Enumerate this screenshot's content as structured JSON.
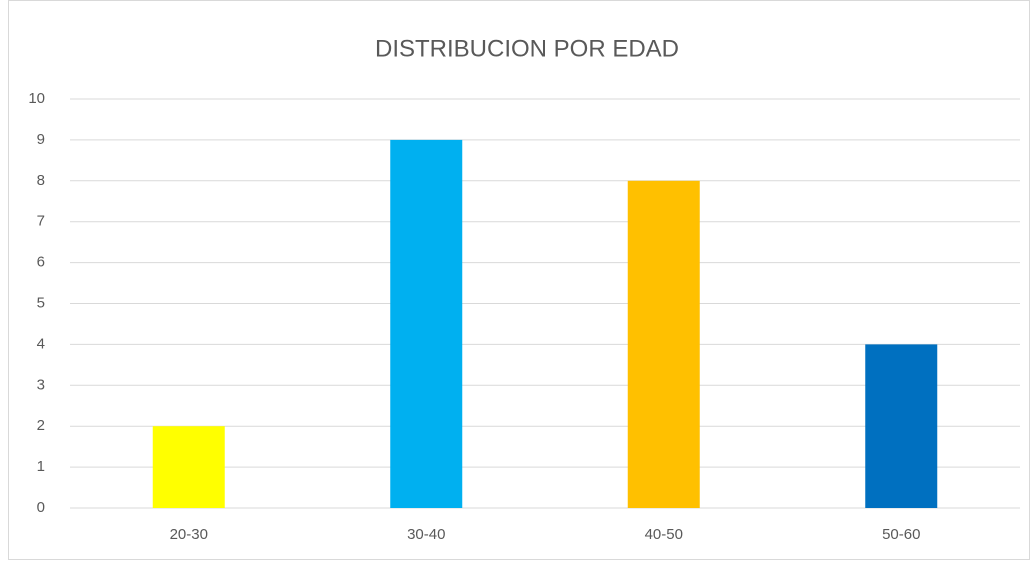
{
  "chart_data": {
    "type": "bar",
    "title": "DISTRIBUCION POR EDAD",
    "categories": [
      "20-30",
      "30-40",
      "40-50",
      "50-60"
    ],
    "values": [
      2,
      9,
      8,
      4
    ],
    "colors": [
      "#ffff00",
      "#00b0f0",
      "#ffc000",
      "#0070c0"
    ],
    "ylim": [
      0,
      10
    ],
    "yticks": [
      0,
      1,
      2,
      3,
      4,
      5,
      6,
      7,
      8,
      9,
      10
    ],
    "grid": true
  }
}
